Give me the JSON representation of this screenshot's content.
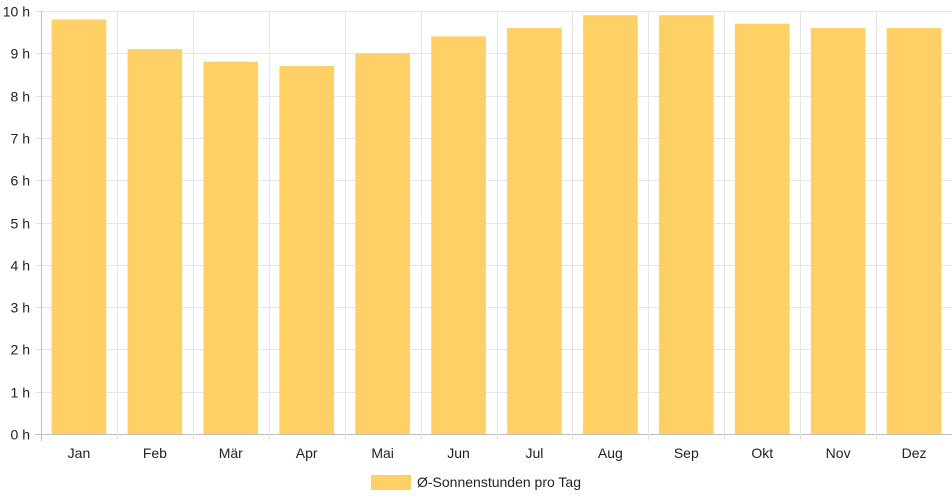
{
  "chart_data": {
    "type": "bar",
    "categories": [
      "Jan",
      "Feb",
      "Mär",
      "Apr",
      "Mai",
      "Jun",
      "Jul",
      "Aug",
      "Sep",
      "Okt",
      "Nov",
      "Dez"
    ],
    "series": [
      {
        "name": "Ø-Sonnenstunden pro Tag",
        "color": "#fed066",
        "values": [
          9.8,
          9.1,
          8.8,
          8.7,
          9.0,
          9.4,
          9.6,
          9.9,
          9.9,
          9.7,
          9.6,
          9.6
        ]
      }
    ],
    "y_unit": "h",
    "ylim": [
      0,
      10
    ],
    "yticks": [
      0,
      1,
      2,
      3,
      4,
      5,
      6,
      7,
      8,
      9,
      10
    ],
    "ytick_labels": [
      "0 h",
      "1 h",
      "2 h",
      "3 h",
      "4 h",
      "5 h",
      "6 h",
      "7 h",
      "8 h",
      "9 h",
      "10 h"
    ],
    "grid": true,
    "legend_position": "bottom"
  }
}
